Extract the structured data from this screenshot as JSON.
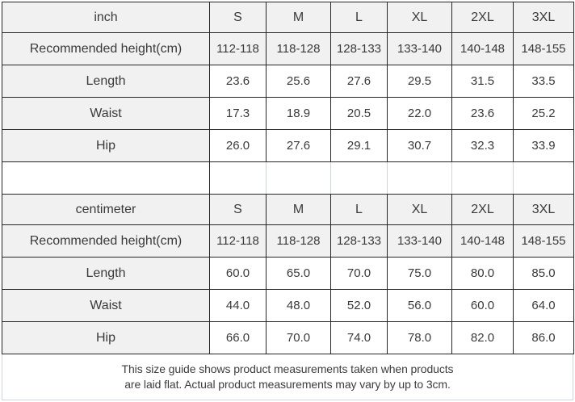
{
  "colors": {
    "border_dark": "#262626",
    "border_light": "#ccd5de",
    "shaded_cell_bg": "#f1f1f1",
    "cell_bg": "#ffffff",
    "text": "#3a3a3a"
  },
  "size_chart": {
    "sections": [
      {
        "unit_label": "inch",
        "size_headers": [
          "S",
          "M",
          "L",
          "XL",
          "2XL",
          "3XL"
        ],
        "rows": [
          {
            "label": "Recommended height(cm)",
            "shaded": true,
            "values": [
              "112-118",
              "118-128",
              "128-133",
              "133-140",
              "140-148",
              "148-155"
            ]
          },
          {
            "label": "Length",
            "shaded": false,
            "values": [
              "23.6",
              "25.6",
              "27.6",
              "29.5",
              "31.5",
              "33.5"
            ]
          },
          {
            "label": "Waist",
            "shaded": false,
            "values": [
              "17.3",
              "18.9",
              "20.5",
              "22.0",
              "23.6",
              "25.2"
            ]
          },
          {
            "label": "Hip",
            "shaded": false,
            "values": [
              "26.0",
              "27.6",
              "29.1",
              "30.7",
              "32.3",
              "33.9"
            ]
          }
        ]
      },
      {
        "unit_label": "centimeter",
        "size_headers": [
          "S",
          "M",
          "L",
          "XL",
          "2XL",
          "3XL"
        ],
        "rows": [
          {
            "label": "Recommended height(cm)",
            "shaded": true,
            "values": [
              "112-118",
              "118-128",
              "128-133",
              "133-140",
              "140-148",
              "148-155"
            ]
          },
          {
            "label": "Length",
            "shaded": false,
            "values": [
              "60.0",
              "65.0",
              "70.0",
              "75.0",
              "80.0",
              "85.0"
            ]
          },
          {
            "label": "Waist",
            "shaded": false,
            "values": [
              "44.0",
              "48.0",
              "52.0",
              "56.0",
              "60.0",
              "64.0"
            ]
          },
          {
            "label": "Hip",
            "shaded": false,
            "values": [
              "66.0",
              "70.0",
              "74.0",
              "78.0",
              "82.0",
              "86.0"
            ]
          }
        ]
      }
    ],
    "note": {
      "line1": "This size guide shows product measurements taken when products",
      "line2": "are laid flat. Actual product measurements may vary by up to 3cm."
    }
  }
}
